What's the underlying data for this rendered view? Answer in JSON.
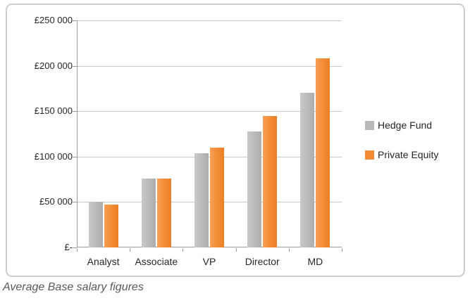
{
  "caption": "Average Base salary figures",
  "legend": {
    "items": [
      {
        "label": "Hedge Fund",
        "color": "#b9b9b9"
      },
      {
        "label": "Private Equity",
        "color": "#f28b35"
      }
    ]
  },
  "chart_data": {
    "type": "bar",
    "title": "",
    "categories": [
      "Analyst",
      "Associate",
      "VP",
      "Director",
      "MD"
    ],
    "series": [
      {
        "name": "Hedge Fund",
        "color": "#bfbfbf",
        "values": [
          50000,
          76000,
          104000,
          128000,
          170000
        ]
      },
      {
        "name": "Private Equity",
        "color": "#f0883a",
        "values": [
          47000,
          76000,
          110000,
          145000,
          208000
        ]
      }
    ],
    "ylabel": "",
    "xlabel": "",
    "ylim": [
      0,
      250000
    ],
    "ytick_step": 50000,
    "ytick_labels": [
      "£-",
      "£50 000",
      "£100 000",
      "£150 000",
      "£200 000",
      "£250 000"
    ],
    "grid": true,
    "legend_position": "right"
  }
}
